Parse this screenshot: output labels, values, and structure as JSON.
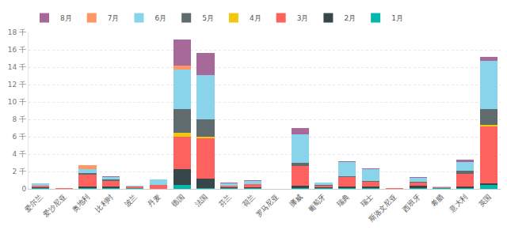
{
  "chart_data": {
    "type": "bar",
    "stacked": true,
    "grid": true,
    "legend": "top-left",
    "categories": [
      "爱尔兰",
      "爱沙尼亚",
      "奥地利",
      "比利时",
      "波兰",
      "丹麦",
      "德国",
      "法国",
      "芬兰",
      "荷兰",
      "罗马尼亚",
      "挪威",
      "葡萄牙",
      "瑞典",
      "瑞士",
      "斯洛文尼亚",
      "西班牙",
      "希腊",
      "意大利",
      "英国"
    ],
    "series": [
      {
        "name": "1月",
        "color": "#01B8AA",
        "values": [
          50,
          0,
          100,
          100,
          50,
          0,
          500,
          100,
          50,
          50,
          0,
          100,
          50,
          100,
          100,
          0,
          100,
          50,
          100,
          500
        ]
      },
      {
        "name": "2月",
        "color": "#374649",
        "values": [
          100,
          0,
          200,
          200,
          0,
          0,
          1800,
          1100,
          100,
          100,
          0,
          300,
          100,
          200,
          200,
          0,
          300,
          50,
          200,
          100
        ]
      },
      {
        "name": "3月",
        "color": "#FD625E",
        "values": [
          200,
          50,
          1300,
          600,
          250,
          500,
          3700,
          4600,
          200,
          400,
          20,
          2200,
          200,
          1100,
          500,
          50,
          300,
          100,
          1400,
          6600
        ]
      },
      {
        "name": "4月",
        "color": "#F2C80F",
        "values": [
          0,
          0,
          0,
          0,
          0,
          0,
          500,
          200,
          0,
          0,
          0,
          0,
          0,
          0,
          0,
          0,
          0,
          0,
          0,
          200
        ]
      },
      {
        "name": "5月",
        "color": "#5F6B6D",
        "values": [
          0,
          0,
          200,
          200,
          0,
          0,
          2700,
          2000,
          0,
          0,
          0,
          400,
          100,
          100,
          100,
          0,
          100,
          0,
          400,
          1800
        ]
      },
      {
        "name": "6月",
        "color": "#8AD4EB",
        "values": [
          250,
          0,
          500,
          300,
          100,
          600,
          4500,
          5100,
          300,
          400,
          0,
          3300,
          250,
          1600,
          1400,
          0,
          500,
          100,
          1000,
          5500
        ]
      },
      {
        "name": "7月",
        "color": "#FE9666",
        "values": [
          0,
          0,
          400,
          0,
          0,
          0,
          500,
          0,
          0,
          0,
          0,
          0,
          0,
          0,
          0,
          0,
          0,
          0,
          0,
          0
        ]
      },
      {
        "name": "8月",
        "color": "#A66999",
        "values": [
          0,
          0,
          0,
          100,
          0,
          0,
          3000,
          2500,
          50,
          50,
          0,
          700,
          0,
          100,
          100,
          0,
          100,
          0,
          300,
          500
        ]
      }
    ],
    "ylim": [
      0,
      18000
    ],
    "yticks": [
      0,
      {
        "value": 2000,
        "label": "2 千"
      },
      {
        "value": 4000,
        "label": "4 千"
      },
      {
        "value": 6000,
        "label": "6 千"
      },
      {
        "value": 8000,
        "label": "8 千"
      },
      {
        "value": 10000,
        "label": "10 千"
      },
      {
        "value": 12000,
        "label": "12 千"
      },
      {
        "value": 14000,
        "label": "14 千"
      },
      {
        "value": 16000,
        "label": "16 千"
      },
      {
        "value": 18000,
        "label": "18 千"
      }
    ]
  }
}
